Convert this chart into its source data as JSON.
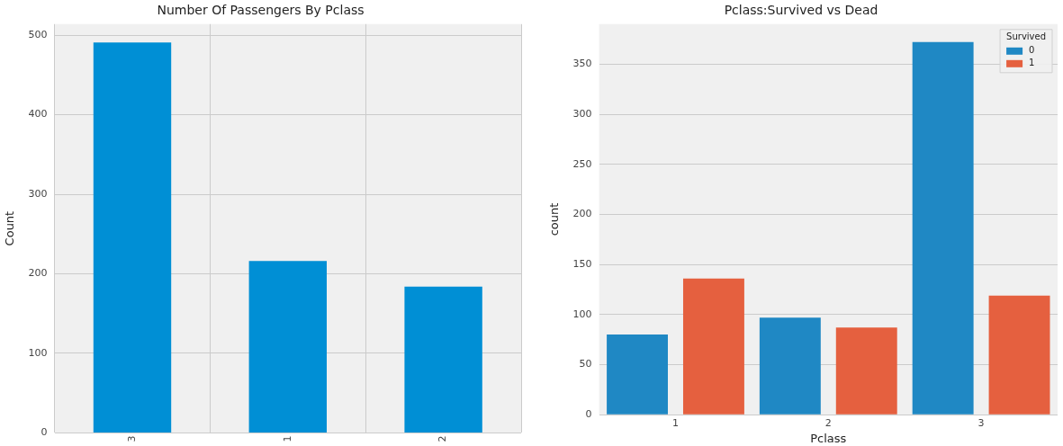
{
  "chart_data": [
    {
      "type": "bar",
      "title": "Number Of Passengers By Pclass",
      "ylabel": "Count",
      "categories": [
        "3",
        "1",
        "2"
      ],
      "values": [
        491,
        216,
        184
      ],
      "color": "#008fd5",
      "ylim": [
        0,
        514
      ],
      "yticks": [
        0,
        100,
        200,
        300,
        400,
        500
      ],
      "grid": true
    },
    {
      "type": "bar",
      "title": "Pclass:Survived vs Dead",
      "xlabel": "Pclass",
      "ylabel": "count",
      "categories": [
        "1",
        "2",
        "3"
      ],
      "series": [
        {
          "name": "0",
          "color": "#1f88c4",
          "values": [
            80,
            97,
            372
          ]
        },
        {
          "name": "1",
          "color": "#e5603f",
          "values": [
            136,
            87,
            119
          ]
        }
      ],
      "ylim": [
        0,
        390
      ],
      "yticks": [
        0,
        50,
        100,
        150,
        200,
        250,
        300,
        350
      ],
      "grid": "y",
      "legend": "top right",
      "legend_title": "Survived"
    }
  ]
}
